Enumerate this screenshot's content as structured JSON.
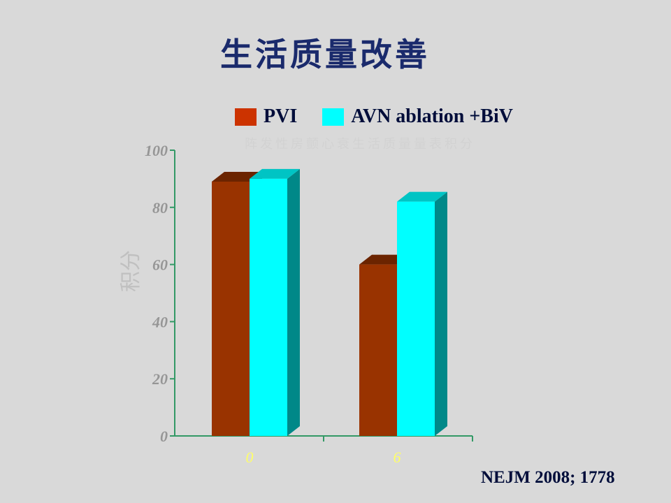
{
  "title": "生活质量改善",
  "faint_note": "阵发性房颤心衰生活质量量表积分",
  "source": "NEJM 2008; 1778",
  "chart_data": {
    "type": "bar",
    "categories": [
      "0",
      "6"
    ],
    "series": [
      {
        "name": "PVI",
        "values": [
          89,
          60
        ],
        "color": "#993300",
        "top_color": "#6b2400",
        "side_color": "#5e1f00"
      },
      {
        "name": "AVN ablation +BiV",
        "values": [
          90,
          82
        ],
        "color": "#00ffff",
        "top_color": "#00c4c4",
        "side_color": "#008888"
      }
    ],
    "ylabel": "积分",
    "xlabel": "",
    "ylim": [
      0,
      100
    ],
    "yticks": [
      0,
      20,
      40,
      60,
      80,
      100
    ],
    "axis_color": "#339966",
    "ytick_color": "#969696",
    "xtick_color": "#ffff66",
    "legend_position": "top"
  }
}
